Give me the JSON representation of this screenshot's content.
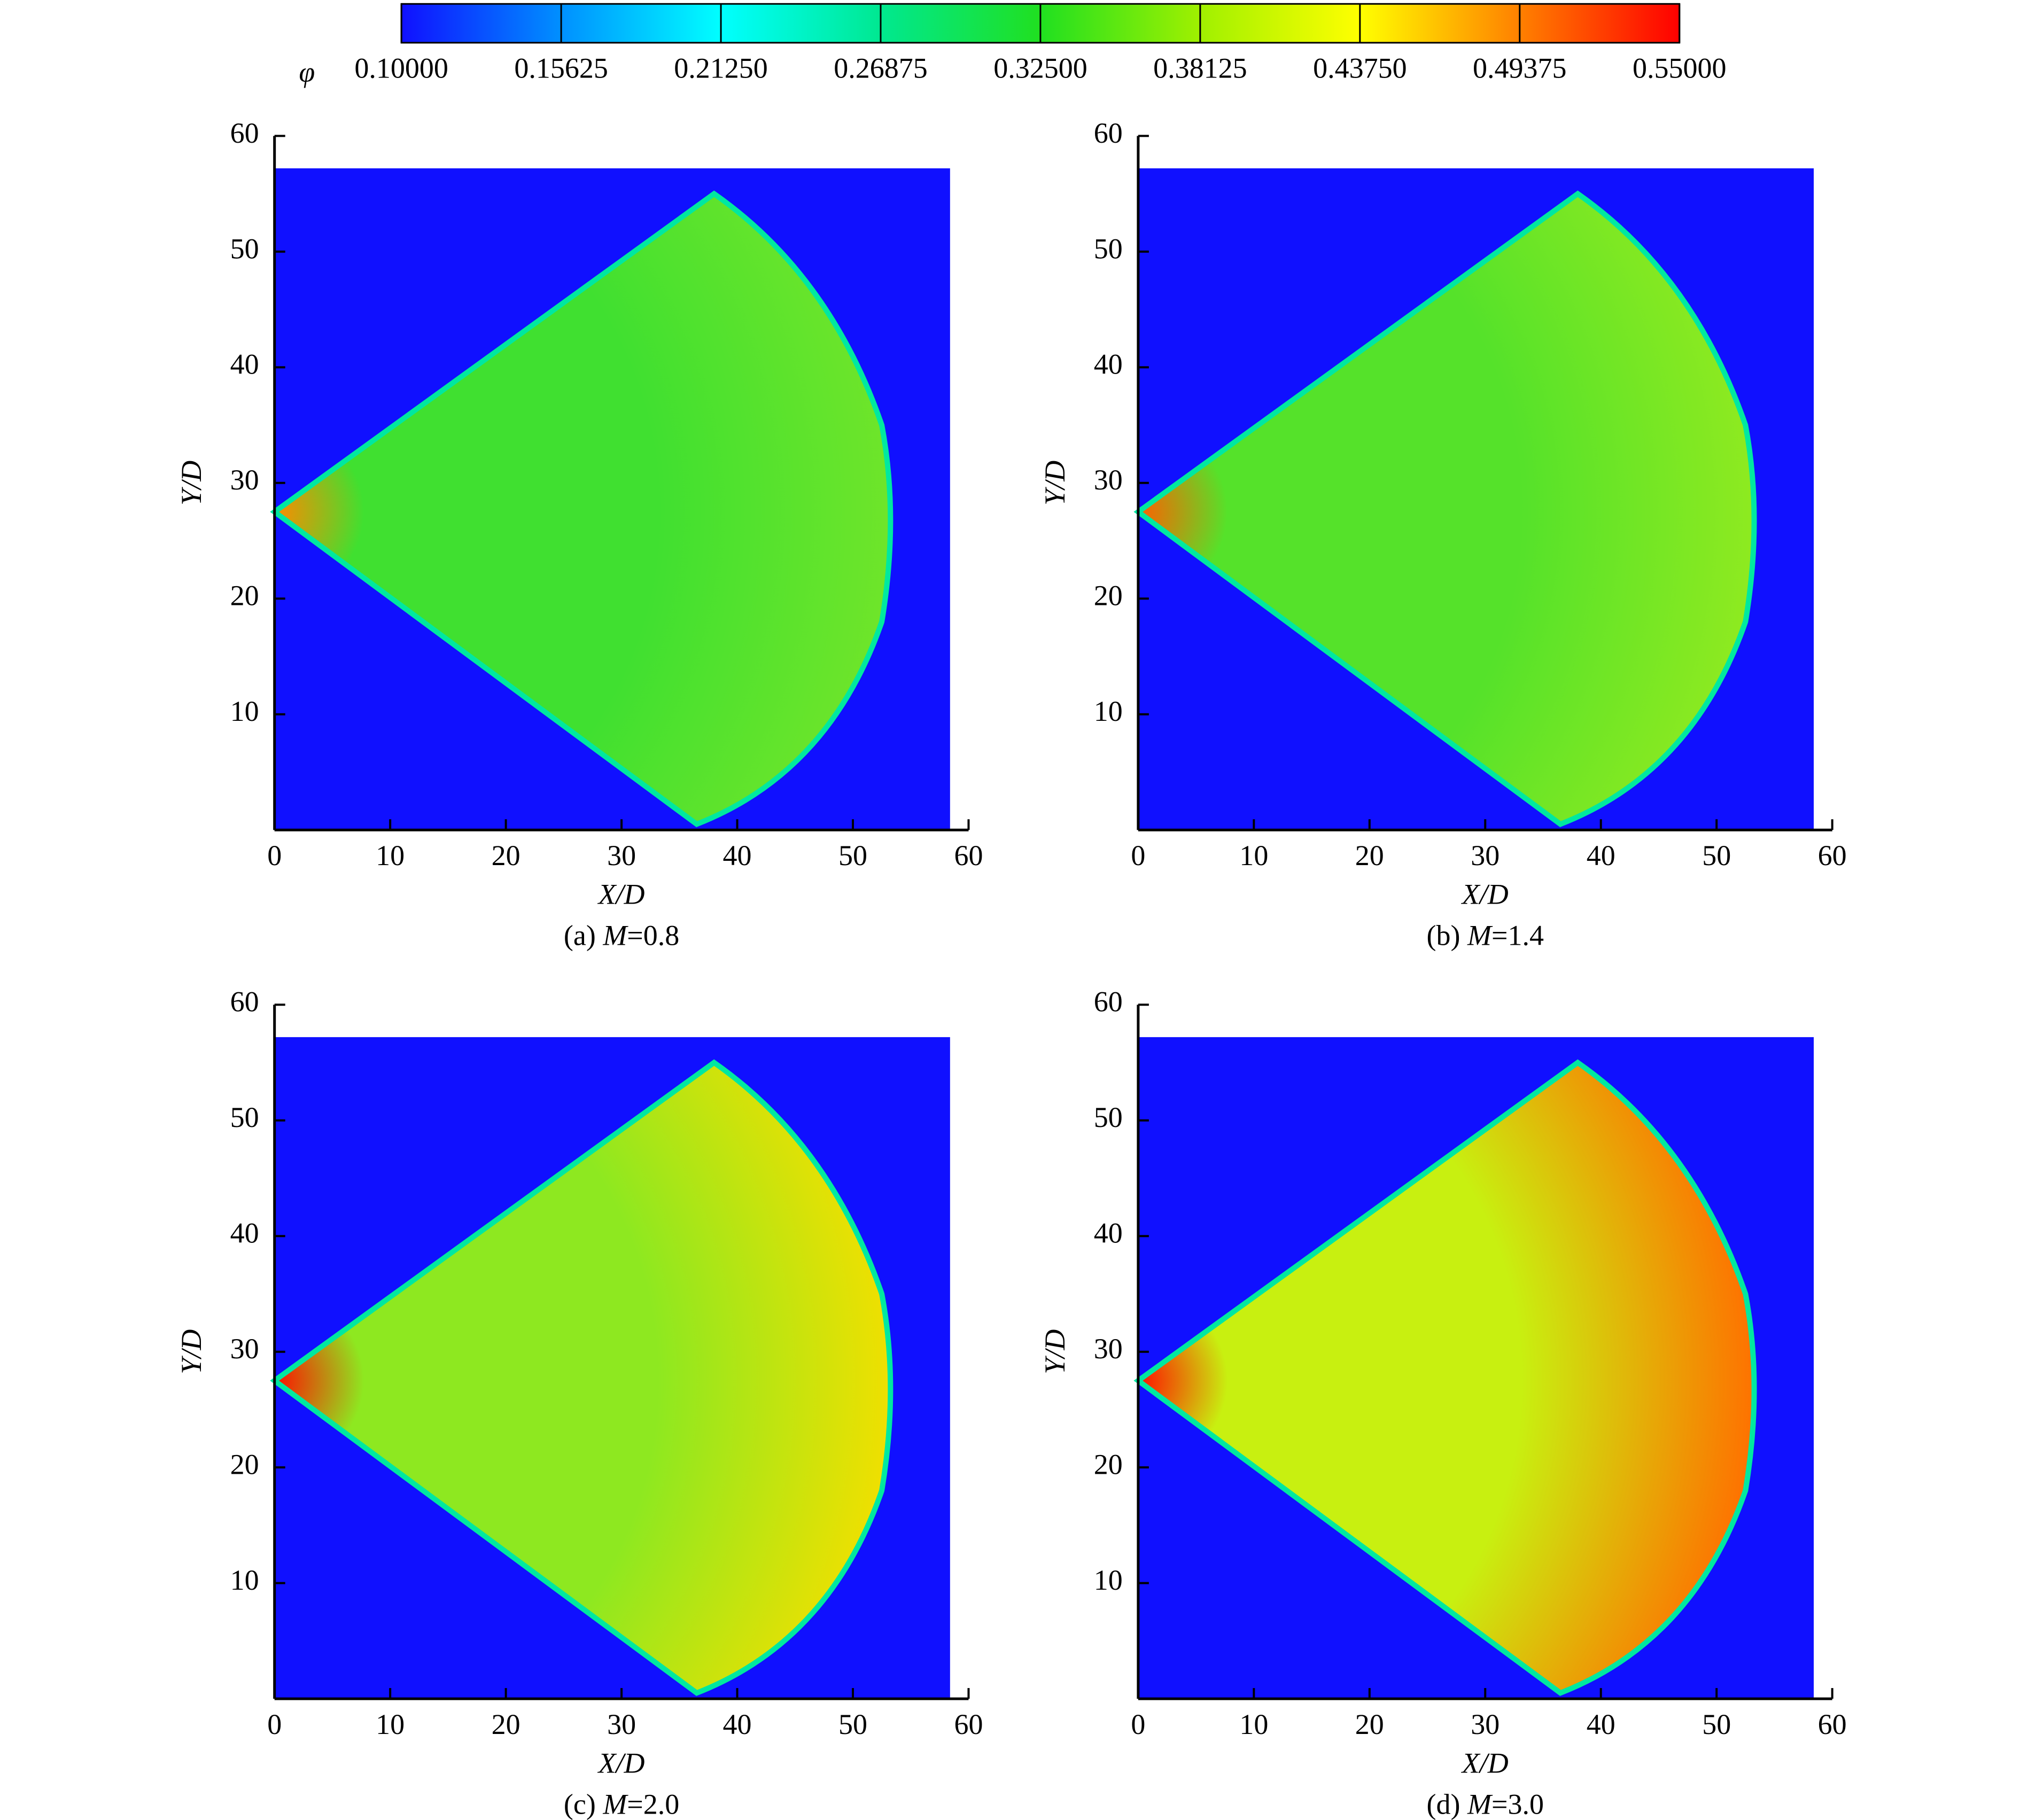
{
  "colorbar": {
    "label": "φ",
    "lim": [
      0.1,
      0.55
    ],
    "colors": [
      "#1010ff",
      "#0090ff",
      "#00ffff",
      "#00e890",
      "#20e020",
      "#a0f000",
      "#ffff00",
      "#ff8000",
      "#ff0000"
    ],
    "ticks": [
      {
        "value": 0.1,
        "label": "0.10000"
      },
      {
        "value": 0.15625,
        "label": "0.15625"
      },
      {
        "value": 0.2125,
        "label": "0.21250"
      },
      {
        "value": 0.26875,
        "label": "0.26875"
      },
      {
        "value": 0.325,
        "label": "0.32500"
      },
      {
        "value": 0.38125,
        "label": "0.38125"
      },
      {
        "value": 0.4375,
        "label": "0.43750"
      },
      {
        "value": 0.49375,
        "label": "0.49375"
      },
      {
        "value": 0.55,
        "label": "0.55000"
      }
    ]
  },
  "chart_data": [
    {
      "type": "contour",
      "caption_prefix": "(a)",
      "caption_var": "M",
      "caption_value": "=0.8",
      "xlabel": "X/D",
      "ylabel": "Y/D",
      "xlim": [
        0,
        60
      ],
      "ylim": [
        0,
        60
      ],
      "xticks": [
        0,
        10,
        20,
        30,
        40,
        50,
        60
      ],
      "yticks": [
        10,
        20,
        30,
        40,
        50,
        60
      ],
      "domain_x": [
        0,
        58.4
      ],
      "domain_y": [
        0,
        57.2
      ],
      "field_colors": [
        "#ff8a00",
        "#40e030",
        "#6fe52a",
        "#00e8a0"
      ]
    },
    {
      "type": "contour",
      "caption_prefix": "(b)",
      "caption_var": "M",
      "caption_value": "=1.4",
      "xlabel": "X/D",
      "ylabel": "Y/D",
      "xlim": [
        0,
        60
      ],
      "ylim": [
        0,
        60
      ],
      "xticks": [
        0,
        10,
        20,
        30,
        40,
        50,
        60
      ],
      "yticks": [
        10,
        20,
        30,
        40,
        50,
        60
      ],
      "domain_x": [
        0,
        58.4
      ],
      "domain_y": [
        0,
        57.2
      ],
      "field_colors": [
        "#ff6000",
        "#55e22a",
        "#8fea20",
        "#00e8a0"
      ]
    },
    {
      "type": "contour",
      "caption_prefix": "(c)",
      "caption_var": "M",
      "caption_value": "=2.0",
      "xlabel": "X/D",
      "ylabel": "Y/D",
      "xlim": [
        0,
        60
      ],
      "ylim": [
        0,
        60
      ],
      "xticks": [
        0,
        10,
        20,
        30,
        40,
        50,
        60
      ],
      "yticks": [
        10,
        20,
        30,
        40,
        50,
        60
      ],
      "domain_x": [
        0,
        58.4
      ],
      "domain_y": [
        0,
        57.2
      ],
      "field_colors": [
        "#ff1000",
        "#8ee820",
        "#f0e000",
        "#00e8a0"
      ]
    },
    {
      "type": "contour",
      "caption_prefix": "(d)",
      "caption_var": "M",
      "caption_value": "=3.0",
      "xlabel": "X/D",
      "ylabel": "Y/D",
      "xlim": [
        0,
        60
      ],
      "ylim": [
        0,
        60
      ],
      "xticks": [
        0,
        10,
        20,
        30,
        40,
        50,
        60
      ],
      "yticks": [
        10,
        20,
        30,
        40,
        50,
        60
      ],
      "domain_x": [
        0,
        58.4
      ],
      "domain_y": [
        0,
        57.2
      ],
      "field_colors": [
        "#ff1000",
        "#c8f010",
        "#ff7000",
        "#00e8a0"
      ]
    }
  ]
}
